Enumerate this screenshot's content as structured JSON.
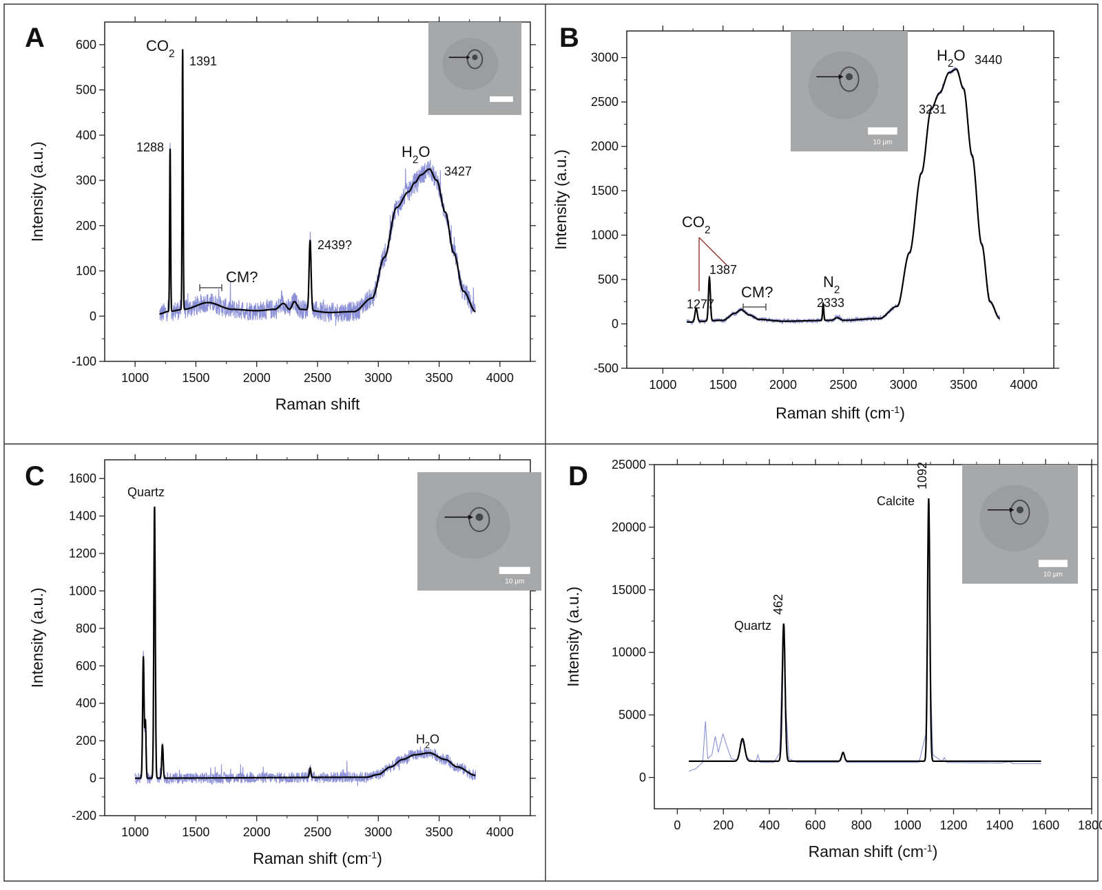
{
  "panels": [
    {
      "letter": "A",
      "ylabel": "Intensity (a.u.)",
      "xlabel": "Raman shift",
      "scale_bar": "",
      "annotations": {
        "co2": "CO",
        "co2_sub": "2",
        "p1391": "1391",
        "p1288": "1288",
        "h2o_h": "H",
        "h2o_sub": "2",
        "h2o_o": "O",
        "p3427": "3427",
        "p2439": "2439?",
        "cm": "CM?"
      }
    },
    {
      "letter": "B",
      "ylabel": "Intensity (a.u.)",
      "xlabel": "Raman shift (cm",
      "xlabel_sup": "-1",
      "xlabel_end": ")",
      "scale_bar": "10 µm",
      "annotations": {
        "h2o_h": "H",
        "h2o_sub": "2",
        "h2o_o": "O",
        "p3440": "3440",
        "p3231": "3231",
        "co2": "CO",
        "co2_sub": "2",
        "p1387": "1387",
        "p1277": "1277",
        "cm": "CM?",
        "n2": "N",
        "n2_sub": "2",
        "p2333": "2333"
      }
    },
    {
      "letter": "C",
      "ylabel": "Intensity (a.u.)",
      "xlabel": "Raman shift (cm",
      "xlabel_sup": "-1",
      "xlabel_end": ")",
      "scale_bar": "10 µm",
      "annotations": {
        "quartz": "Quartz",
        "h2o_h": "H",
        "h2o_sub": "2",
        "h2o_o": "O"
      }
    },
    {
      "letter": "D",
      "ylabel": "Intensity (a.u.)",
      "xlabel": "Raman shift (cm",
      "xlabel_sup": "-1",
      "xlabel_end": ")",
      "scale_bar": "10 µm",
      "annotations": {
        "quartz": "Quartz",
        "p462": "462",
        "calcite": "Calcite",
        "p1092": "1092"
      }
    }
  ],
  "colors": {
    "raw": "#8a8fd6",
    "fit": "#000000",
    "inset_bg": "#a9a9a9",
    "border": "#333333"
  },
  "chart_data": [
    {
      "type": "line",
      "panel": "A",
      "xlabel": "Raman shift",
      "ylabel": "Intensity (a.u.)",
      "xlim": [
        750,
        4250
      ],
      "ylim": [
        -100,
        650
      ],
      "xticks": [
        1000,
        1500,
        2000,
        2500,
        3000,
        3500,
        4000
      ],
      "yticks": [
        -100,
        0,
        100,
        200,
        300,
        400,
        500,
        600
      ],
      "baseline": [
        [
          1200,
          5
        ],
        [
          1270,
          10
        ],
        [
          1400,
          15
        ],
        [
          1600,
          30
        ],
        [
          1800,
          15
        ],
        [
          2000,
          12
        ],
        [
          2150,
          15
        ],
        [
          2220,
          28
        ],
        [
          2270,
          15
        ],
        [
          2310,
          32
        ],
        [
          2360,
          15
        ],
        [
          2600,
          8
        ],
        [
          2800,
          10
        ],
        [
          2950,
          40
        ],
        [
          3050,
          130
        ],
        [
          3150,
          240
        ],
        [
          3250,
          275
        ],
        [
          3300,
          295
        ],
        [
          3350,
          312
        ],
        [
          3420,
          325
        ],
        [
          3480,
          300
        ],
        [
          3550,
          230
        ],
        [
          3620,
          140
        ],
        [
          3700,
          55
        ],
        [
          3800,
          10
        ]
      ],
      "peaks": [
        {
          "x": 1288,
          "y": 360,
          "w": 4
        },
        {
          "x": 1391,
          "y": 575,
          "w": 4
        },
        {
          "x": 2439,
          "y": 155,
          "w": 8
        }
      ],
      "noise": 22,
      "fit_from": 1200,
      "fit_to": 3800
    },
    {
      "type": "line",
      "panel": "B",
      "xlabel": "Raman shift (cm-1)",
      "ylabel": "Intensity (a.u.)",
      "xlim": [
        700,
        4250
      ],
      "ylim": [
        -500,
        3300
      ],
      "xticks": [
        1000,
        1500,
        2000,
        2500,
        3000,
        3500,
        4000
      ],
      "yticks": [
        -500,
        0,
        500,
        1000,
        1500,
        2000,
        2500,
        3000
      ],
      "baseline": [
        [
          1200,
          20
        ],
        [
          1500,
          40
        ],
        [
          1600,
          120
        ],
        [
          1650,
          160
        ],
        [
          1720,
          100
        ],
        [
          1800,
          50
        ],
        [
          2000,
          30
        ],
        [
          2400,
          40
        ],
        [
          2450,
          70
        ],
        [
          2500,
          40
        ],
        [
          2800,
          60
        ],
        [
          2950,
          200
        ],
        [
          3050,
          800
        ],
        [
          3150,
          1700
        ],
        [
          3231,
          2420
        ],
        [
          3300,
          2600
        ],
        [
          3380,
          2830
        ],
        [
          3440,
          2870
        ],
        [
          3500,
          2650
        ],
        [
          3570,
          1900
        ],
        [
          3650,
          900
        ],
        [
          3720,
          250
        ],
        [
          3800,
          60
        ]
      ],
      "peaks": [
        {
          "x": 1277,
          "y": 150,
          "w": 10
        },
        {
          "x": 1387,
          "y": 490,
          "w": 8
        },
        {
          "x": 2333,
          "y": 190,
          "w": 5
        }
      ],
      "noise": 25,
      "fit_from": 1200,
      "fit_to": 3800
    },
    {
      "type": "line",
      "panel": "C",
      "xlabel": "Raman shift (cm-1)",
      "ylabel": "Intensity (a.u.)",
      "xlim": [
        750,
        4250
      ],
      "ylim": [
        -200,
        1700
      ],
      "xticks": [
        1000,
        1500,
        2000,
        2500,
        3000,
        3500,
        4000
      ],
      "yticks": [
        -200,
        0,
        200,
        400,
        600,
        800,
        1000,
        1200,
        1400,
        1600
      ],
      "baseline": [
        [
          1000,
          0
        ],
        [
          2900,
          5
        ],
        [
          3000,
          20
        ],
        [
          3100,
          60
        ],
        [
          3200,
          100
        ],
        [
          3300,
          125
        ],
        [
          3420,
          135
        ],
        [
          3550,
          100
        ],
        [
          3650,
          60
        ],
        [
          3800,
          15
        ]
      ],
      "peaks": [
        {
          "x": 1068,
          "y": 650,
          "w": 6
        },
        {
          "x": 1085,
          "y": 300,
          "w": 5
        },
        {
          "x": 1160,
          "y": 1450,
          "w": 6
        },
        {
          "x": 1225,
          "y": 180,
          "w": 6
        },
        {
          "x": 2440,
          "y": 50,
          "w": 6
        }
      ],
      "noise": 30,
      "fit_from": 1000,
      "fit_to": 3800
    },
    {
      "type": "line",
      "panel": "D",
      "xlabel": "Raman shift (cm-1)",
      "ylabel": "Intensity (a.u.)",
      "xlim": [
        -100,
        1800
      ],
      "ylim": [
        -2500,
        25000
      ],
      "xticks": [
        0,
        200,
        400,
        600,
        800,
        1000,
        1200,
        1400,
        1600,
        1800
      ],
      "yticks": [
        0,
        5000,
        10000,
        15000,
        20000,
        25000
      ],
      "baseline": [
        [
          50,
          1300
        ],
        [
          1580,
          1300
        ]
      ],
      "peaks": [
        {
          "x": 283,
          "y": 1800,
          "w": 10
        },
        {
          "x": 462,
          "y": 11000,
          "w": 6
        },
        {
          "x": 720,
          "y": 700,
          "w": 6
        },
        {
          "x": 1092,
          "y": 21000,
          "w": 5
        }
      ],
      "raw": [
        [
          50,
          500
        ],
        [
          80,
          700
        ],
        [
          110,
          1200
        ],
        [
          122,
          4500
        ],
        [
          132,
          1500
        ],
        [
          150,
          1800
        ],
        [
          165,
          3300
        ],
        [
          178,
          2000
        ],
        [
          198,
          3500
        ],
        [
          215,
          2500
        ],
        [
          235,
          1500
        ],
        [
          260,
          1400
        ],
        [
          283,
          3000
        ],
        [
          300,
          1600
        ],
        [
          340,
          1200
        ],
        [
          350,
          1800
        ],
        [
          360,
          1200
        ],
        [
          420,
          1200
        ],
        [
          445,
          2000
        ],
        [
          455,
          9000
        ],
        [
          462,
          12500
        ],
        [
          470,
          6000
        ],
        [
          485,
          1500
        ],
        [
          520,
          1200
        ],
        [
          700,
          1200
        ],
        [
          720,
          2000
        ],
        [
          735,
          1200
        ],
        [
          1050,
          1200
        ],
        [
          1080,
          3500
        ],
        [
          1088,
          15000
        ],
        [
          1092,
          22500
        ],
        [
          1098,
          9000
        ],
        [
          1110,
          1800
        ],
        [
          1150,
          1300
        ],
        [
          1160,
          1600
        ],
        [
          1170,
          1200
        ],
        [
          1400,
          1150
        ],
        [
          1440,
          1250
        ],
        [
          1460,
          1100
        ],
        [
          1580,
          1100
        ]
      ],
      "fit_from": 50,
      "fit_to": 1580
    }
  ]
}
